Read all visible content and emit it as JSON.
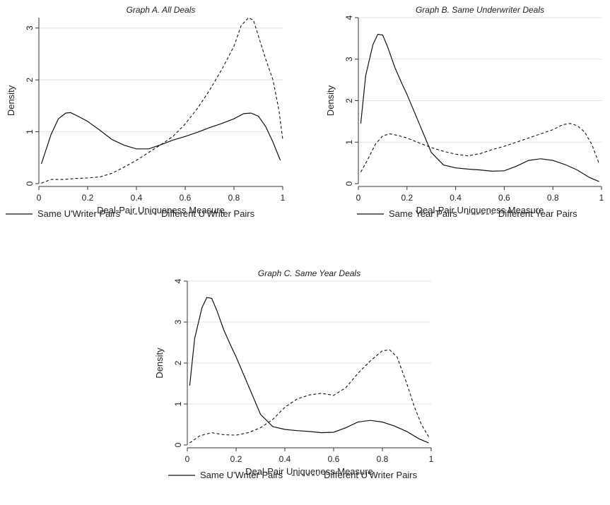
{
  "chart_data": [
    {
      "type": "line",
      "title": "Graph A. All Deals",
      "xlabel": "Deal-Pair Uniqueness Measure",
      "ylabel": "Density",
      "xlim": [
        0,
        1
      ],
      "ylim": [
        0,
        3.2
      ],
      "xticks": [
        "0",
        "0.2",
        "0.4",
        "0.6",
        "0.8",
        "1"
      ],
      "yticks": [
        "0",
        "1",
        "2",
        "3"
      ],
      "grid": true,
      "legend": "bottom",
      "series": [
        {
          "name": "Same U'Writer Pairs",
          "style": "solid",
          "x": [
            0.01,
            0.05,
            0.08,
            0.11,
            0.13,
            0.16,
            0.2,
            0.25,
            0.3,
            0.35,
            0.4,
            0.45,
            0.5,
            0.55,
            0.6,
            0.65,
            0.7,
            0.75,
            0.8,
            0.84,
            0.87,
            0.9,
            0.93,
            0.96,
            0.99
          ],
          "y": [
            0.38,
            0.95,
            1.25,
            1.36,
            1.37,
            1.3,
            1.2,
            1.03,
            0.85,
            0.74,
            0.67,
            0.67,
            0.75,
            0.84,
            0.91,
            0.99,
            1.08,
            1.16,
            1.25,
            1.35,
            1.36,
            1.3,
            1.1,
            0.8,
            0.45
          ]
        },
        {
          "name": "Different U'Writer Pairs",
          "style": "dashed",
          "x": [
            0.01,
            0.05,
            0.1,
            0.15,
            0.2,
            0.25,
            0.3,
            0.35,
            0.4,
            0.45,
            0.5,
            0.55,
            0.6,
            0.65,
            0.7,
            0.75,
            0.8,
            0.83,
            0.86,
            0.88,
            0.9,
            0.93,
            0.96,
            0.985,
            1.0
          ],
          "y": [
            0.01,
            0.08,
            0.08,
            0.1,
            0.11,
            0.13,
            0.2,
            0.32,
            0.45,
            0.6,
            0.75,
            0.91,
            1.15,
            1.45,
            1.8,
            2.2,
            2.65,
            3.05,
            3.2,
            3.15,
            2.85,
            2.4,
            2.0,
            1.4,
            0.85
          ]
        }
      ]
    },
    {
      "type": "line",
      "title": "Graph B. Same Underwriter Deals",
      "xlabel": "Deal-Pair Uniqueness Measure",
      "ylabel": "Density",
      "xlim": [
        0,
        1
      ],
      "ylim": [
        0,
        4
      ],
      "xticks": [
        "0",
        "0.2",
        "0.4",
        "0.6",
        "0.8",
        "1"
      ],
      "yticks": [
        "0",
        "1",
        "2",
        "3",
        "4"
      ],
      "grid": true,
      "legend": "bottom",
      "series": [
        {
          "name": "Same Year Pairs",
          "style": "solid",
          "x": [
            0.01,
            0.03,
            0.06,
            0.08,
            0.1,
            0.12,
            0.15,
            0.18,
            0.2,
            0.25,
            0.3,
            0.35,
            0.4,
            0.45,
            0.5,
            0.55,
            0.6,
            0.65,
            0.7,
            0.75,
            0.8,
            0.85,
            0.9,
            0.95,
            0.99
          ],
          "y": [
            1.45,
            2.6,
            3.35,
            3.6,
            3.58,
            3.3,
            2.8,
            2.4,
            2.15,
            1.45,
            0.75,
            0.45,
            0.38,
            0.35,
            0.33,
            0.3,
            0.31,
            0.42,
            0.56,
            0.6,
            0.56,
            0.46,
            0.33,
            0.15,
            0.05
          ]
        },
        {
          "name": "Different Year Pairs",
          "style": "dashed",
          "x": [
            0.01,
            0.04,
            0.07,
            0.1,
            0.13,
            0.17,
            0.2,
            0.25,
            0.3,
            0.35,
            0.4,
            0.45,
            0.5,
            0.55,
            0.6,
            0.65,
            0.7,
            0.75,
            0.8,
            0.84,
            0.87,
            0.9,
            0.93,
            0.96,
            0.99
          ],
          "y": [
            0.28,
            0.6,
            0.95,
            1.15,
            1.2,
            1.15,
            1.1,
            0.98,
            0.87,
            0.78,
            0.71,
            0.67,
            0.72,
            0.82,
            0.9,
            1.0,
            1.1,
            1.2,
            1.3,
            1.42,
            1.45,
            1.4,
            1.25,
            0.95,
            0.48
          ]
        }
      ]
    },
    {
      "type": "line",
      "title": "Graph C. Same Year Deals",
      "xlabel": "Deal-Pair Uniqueness Measure",
      "ylabel": "Density",
      "xlim": [
        0,
        1
      ],
      "ylim": [
        0,
        4
      ],
      "xticks": [
        "0",
        "0.2",
        "0.4",
        "0.6",
        "0.8",
        "1"
      ],
      "yticks": [
        "0",
        "1",
        "2",
        "3",
        "4"
      ],
      "grid": true,
      "legend": "bottom",
      "series": [
        {
          "name": "Same U'Writer Pairs",
          "style": "solid",
          "x": [
            0.01,
            0.03,
            0.06,
            0.08,
            0.1,
            0.12,
            0.15,
            0.18,
            0.2,
            0.25,
            0.3,
            0.35,
            0.4,
            0.45,
            0.5,
            0.55,
            0.6,
            0.65,
            0.7,
            0.75,
            0.8,
            0.85,
            0.9,
            0.95,
            0.99
          ],
          "y": [
            1.45,
            2.6,
            3.35,
            3.6,
            3.58,
            3.3,
            2.8,
            2.4,
            2.15,
            1.45,
            0.75,
            0.45,
            0.38,
            0.35,
            0.33,
            0.3,
            0.31,
            0.42,
            0.56,
            0.6,
            0.56,
            0.46,
            0.33,
            0.15,
            0.05
          ]
        },
        {
          "name": "Different U'Writer Pairs",
          "style": "dashed",
          "x": [
            0.01,
            0.05,
            0.1,
            0.15,
            0.2,
            0.25,
            0.3,
            0.35,
            0.4,
            0.45,
            0.5,
            0.55,
            0.6,
            0.65,
            0.7,
            0.75,
            0.8,
            0.83,
            0.86,
            0.9,
            0.93,
            0.96,
            0.99
          ],
          "y": [
            0.05,
            0.22,
            0.3,
            0.25,
            0.24,
            0.3,
            0.42,
            0.62,
            0.92,
            1.12,
            1.22,
            1.26,
            1.21,
            1.4,
            1.75,
            2.05,
            2.3,
            2.32,
            2.15,
            1.5,
            0.95,
            0.5,
            0.2
          ]
        }
      ]
    }
  ]
}
